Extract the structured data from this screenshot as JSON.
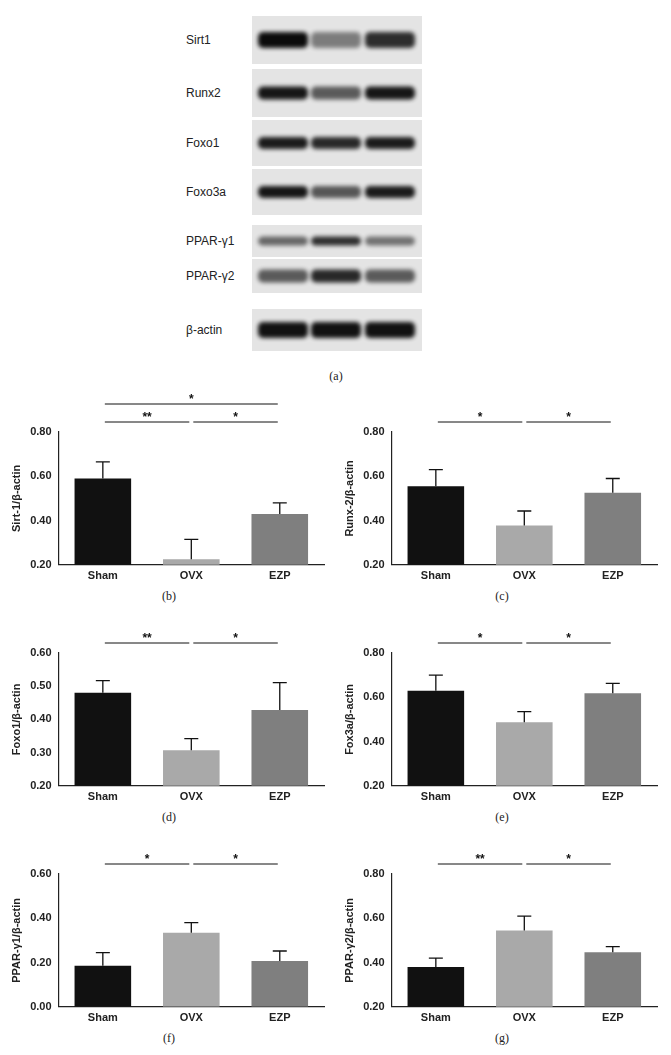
{
  "blot": {
    "rows": [
      "Sirt1",
      "Runx2",
      "Foxo1",
      "Foxo3a",
      "PPAR-γ1",
      "PPAR-γ2",
      "β-actin"
    ],
    "panel_label": "(a)"
  },
  "chart_data": [
    {
      "type": "bar",
      "panel_label": "(b)",
      "y_label": "Sirt-1/β-actin",
      "categories": [
        "Sham",
        "OVX",
        "EZP"
      ],
      "values": [
        0.59,
        0.225,
        0.43
      ],
      "errors": [
        0.075,
        0.09,
        0.05
      ],
      "colors": [
        "#111111",
        "#a9a9a9",
        "#7f7f7f"
      ],
      "ylim": [
        0.2,
        0.8
      ],
      "yticks": [
        {
          "value": 0.2,
          "label": "0.20"
        },
        {
          "value": 0.4,
          "label": "0.40"
        },
        {
          "value": 0.6,
          "label": "0.60"
        },
        {
          "value": 0.8,
          "label": "0.80"
        }
      ],
      "grid": false,
      "annotations": [
        {
          "between": [
            "Sham",
            "EZP"
          ],
          "text": "*"
        },
        {
          "between": [
            "Sham",
            "OVX"
          ],
          "text": "**"
        },
        {
          "between": [
            "OVX",
            "EZP"
          ],
          "text": "*"
        }
      ]
    },
    {
      "type": "bar",
      "panel_label": "(c)",
      "y_label": "Runx-2/β-actin",
      "categories": [
        "Sham",
        "OVX",
        "EZP"
      ],
      "values": [
        0.555,
        0.378,
        0.525
      ],
      "errors": [
        0.075,
        0.065,
        0.065
      ],
      "colors": [
        "#111111",
        "#a9a9a9",
        "#7f7f7f"
      ],
      "ylim": [
        0.2,
        0.8
      ],
      "yticks": [
        {
          "value": 0.2,
          "label": "0.20"
        },
        {
          "value": 0.4,
          "label": "0.40"
        },
        {
          "value": 0.6,
          "label": "0.60"
        },
        {
          "value": 0.8,
          "label": "0.80"
        }
      ],
      "grid": false,
      "annotations": [
        {
          "between": [
            "Sham",
            "OVX"
          ],
          "text": "*"
        },
        {
          "between": [
            "OVX",
            "EZP"
          ],
          "text": "*"
        }
      ]
    },
    {
      "type": "bar",
      "panel_label": "(d)",
      "y_label": "Foxo1/β-actin",
      "categories": [
        "Sham",
        "OVX",
        "EZP"
      ],
      "values": [
        0.48,
        0.307,
        0.428
      ],
      "errors": [
        0.037,
        0.035,
        0.083
      ],
      "colors": [
        "#111111",
        "#a9a9a9",
        "#7f7f7f"
      ],
      "ylim": [
        0.2,
        0.6
      ],
      "yticks": [
        {
          "value": 0.2,
          "label": "0.20"
        },
        {
          "value": 0.3,
          "label": "0.30"
        },
        {
          "value": 0.4,
          "label": "0.40"
        },
        {
          "value": 0.5,
          "label": "0.50"
        },
        {
          "value": 0.6,
          "label": "0.60"
        }
      ],
      "grid": false,
      "annotations": [
        {
          "between": [
            "Sham",
            "OVX"
          ],
          "text": "**"
        },
        {
          "between": [
            "OVX",
            "EZP"
          ],
          "text": "*"
        }
      ]
    },
    {
      "type": "bar",
      "panel_label": "(e)",
      "y_label": "Fox3a/β-actin",
      "categories": [
        "Sham",
        "OVX",
        "EZP"
      ],
      "values": [
        0.63,
        0.487,
        0.618
      ],
      "errors": [
        0.07,
        0.048,
        0.045
      ],
      "colors": [
        "#111111",
        "#a9a9a9",
        "#7f7f7f"
      ],
      "ylim": [
        0.2,
        0.8
      ],
      "yticks": [
        {
          "value": 0.2,
          "label": "0.20"
        },
        {
          "value": 0.4,
          "label": "0.40"
        },
        {
          "value": 0.6,
          "label": "0.60"
        },
        {
          "value": 0.8,
          "label": "0.80"
        }
      ],
      "grid": false,
      "annotations": [
        {
          "between": [
            "Sham",
            "OVX"
          ],
          "text": "*"
        },
        {
          "between": [
            "OVX",
            "EZP"
          ],
          "text": "*"
        }
      ]
    },
    {
      "type": "bar",
      "panel_label": "(f)",
      "y_label": "PPAR-γ1/β-actin",
      "categories": [
        "Sham",
        "OVX",
        "EZP"
      ],
      "values": [
        0.185,
        0.335,
        0.207
      ],
      "errors": [
        0.06,
        0.045,
        0.045
      ],
      "colors": [
        "#111111",
        "#a9a9a9",
        "#7f7f7f"
      ],
      "ylim": [
        0,
        0.6
      ],
      "yticks": [
        {
          "value": 0,
          "label": "0.00"
        },
        {
          "value": 0.2,
          "label": "0.20"
        },
        {
          "value": 0.4,
          "label": "0.40"
        },
        {
          "value": 0.6,
          "label": "0.60"
        }
      ],
      "grid": false,
      "annotations": [
        {
          "between": [
            "Sham",
            "OVX"
          ],
          "text": "*"
        },
        {
          "between": [
            "OVX",
            "EZP"
          ],
          "text": "*"
        }
      ]
    },
    {
      "type": "bar",
      "panel_label": "(g)",
      "y_label": "PPAR-γ2/β-actin",
      "categories": [
        "Sham",
        "OVX",
        "EZP"
      ],
      "values": [
        0.38,
        0.545,
        0.447
      ],
      "errors": [
        0.04,
        0.065,
        0.025
      ],
      "colors": [
        "#111111",
        "#a9a9a9",
        "#7f7f7f"
      ],
      "ylim": [
        0.2,
        0.8
      ],
      "yticks": [
        {
          "value": 0.2,
          "label": "0.20"
        },
        {
          "value": 0.4,
          "label": "0.40"
        },
        {
          "value": 0.6,
          "label": "0.60"
        },
        {
          "value": 0.8,
          "label": "0.80"
        }
      ],
      "grid": false,
      "annotations": [
        {
          "between": [
            "Sham",
            "OVX"
          ],
          "text": "**"
        },
        {
          "between": [
            "OVX",
            "EZP"
          ],
          "text": "*"
        }
      ]
    }
  ]
}
